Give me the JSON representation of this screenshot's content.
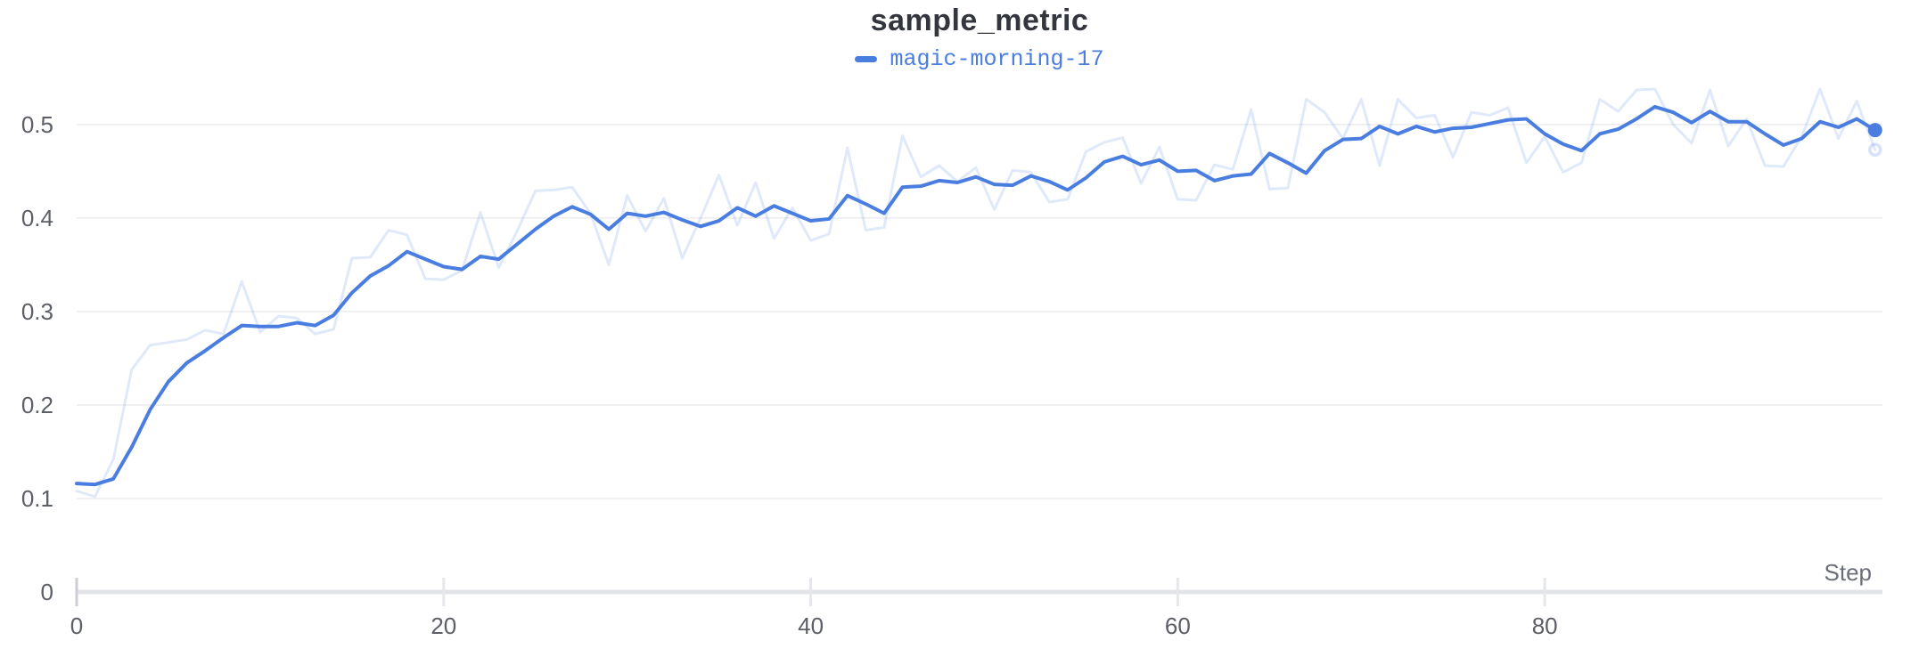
{
  "page": {
    "background": "#ffffff"
  },
  "chart_data": {
    "type": "line",
    "title": "sample_metric",
    "xlabel": "Step",
    "ylabel": "",
    "legend_position": "top-center",
    "grid": "horizontal-only",
    "x_ticks": [
      0,
      20,
      40,
      60,
      80
    ],
    "y_ticks": [
      0,
      0.1,
      0.2,
      0.3,
      0.4,
      0.5
    ],
    "xlim": [
      0,
      98.4
    ],
    "ylim": [
      0,
      0.557
    ],
    "x_start": 0,
    "x_step": 1,
    "legend": [
      "magic-morning-17"
    ],
    "accent_color": "#4a7de0",
    "raw_line_opacity": 0.17,
    "grid_color": "#ececef",
    "axis_color": "#e3e4e8",
    "tick_label_color": "#5c5f66",
    "axis_label_color": "#6b6e78",
    "title_color": "#33373d",
    "series": [
      {
        "name": "magic-morning-17",
        "style": "smoothed",
        "color": "#4a7de0",
        "values": [
          0.116,
          0.115,
          0.121,
          0.155,
          0.195,
          0.225,
          0.245,
          0.258,
          0.272,
          0.285,
          0.284,
          0.284,
          0.288,
          0.285,
          0.296,
          0.32,
          0.338,
          0.349,
          0.364,
          0.356,
          0.348,
          0.345,
          0.359,
          0.356,
          0.372,
          0.388,
          0.402,
          0.412,
          0.404,
          0.388,
          0.405,
          0.402,
          0.406,
          0.398,
          0.391,
          0.397,
          0.411,
          0.402,
          0.413,
          0.405,
          0.397,
          0.399,
          0.424,
          0.415,
          0.405,
          0.433,
          0.434,
          0.44,
          0.438,
          0.444,
          0.436,
          0.435,
          0.445,
          0.439,
          0.43,
          0.443,
          0.46,
          0.466,
          0.457,
          0.462,
          0.45,
          0.451,
          0.44,
          0.445,
          0.447,
          0.469,
          0.459,
          0.448,
          0.472,
          0.484,
          0.485,
          0.498,
          0.49,
          0.498,
          0.492,
          0.496,
          0.497,
          0.501,
          0.505,
          0.506,
          0.49,
          0.479,
          0.472,
          0.49,
          0.495,
          0.506,
          0.519,
          0.513,
          0.502,
          0.514,
          0.503,
          0.503,
          0.49,
          0.478,
          0.485,
          0.503,
          0.497,
          0.506,
          0.494
        ]
      },
      {
        "name": "magic-morning-17 (original)",
        "style": "raw",
        "color": "#4a7de0",
        "values": [
          0.108,
          0.102,
          0.142,
          0.238,
          0.264,
          0.267,
          0.27,
          0.28,
          0.276,
          0.332,
          0.278,
          0.295,
          0.293,
          0.276,
          0.281,
          0.357,
          0.358,
          0.387,
          0.382,
          0.335,
          0.334,
          0.344,
          0.406,
          0.347,
          0.386,
          0.429,
          0.43,
          0.433,
          0.405,
          0.35,
          0.424,
          0.386,
          0.421,
          0.357,
          0.4,
          0.446,
          0.392,
          0.438,
          0.378,
          0.411,
          0.376,
          0.383,
          0.475,
          0.387,
          0.39,
          0.488,
          0.444,
          0.456,
          0.439,
          0.454,
          0.409,
          0.451,
          0.449,
          0.417,
          0.42,
          0.471,
          0.481,
          0.486,
          0.437,
          0.476,
          0.42,
          0.419,
          0.457,
          0.452,
          0.516,
          0.431,
          0.432,
          0.527,
          0.513,
          0.485,
          0.527,
          0.456,
          0.527,
          0.507,
          0.51,
          0.465,
          0.513,
          0.51,
          0.518,
          0.459,
          0.487,
          0.449,
          0.459,
          0.527,
          0.514,
          0.537,
          0.538,
          0.5,
          0.48,
          0.537,
          0.477,
          0.506,
          0.456,
          0.455,
          0.487,
          0.538,
          0.485,
          0.525,
          0.473
        ]
      }
    ],
    "end_point": {
      "step": 98,
      "smoothed_value": 0.494,
      "raw_value": 0.473
    }
  }
}
